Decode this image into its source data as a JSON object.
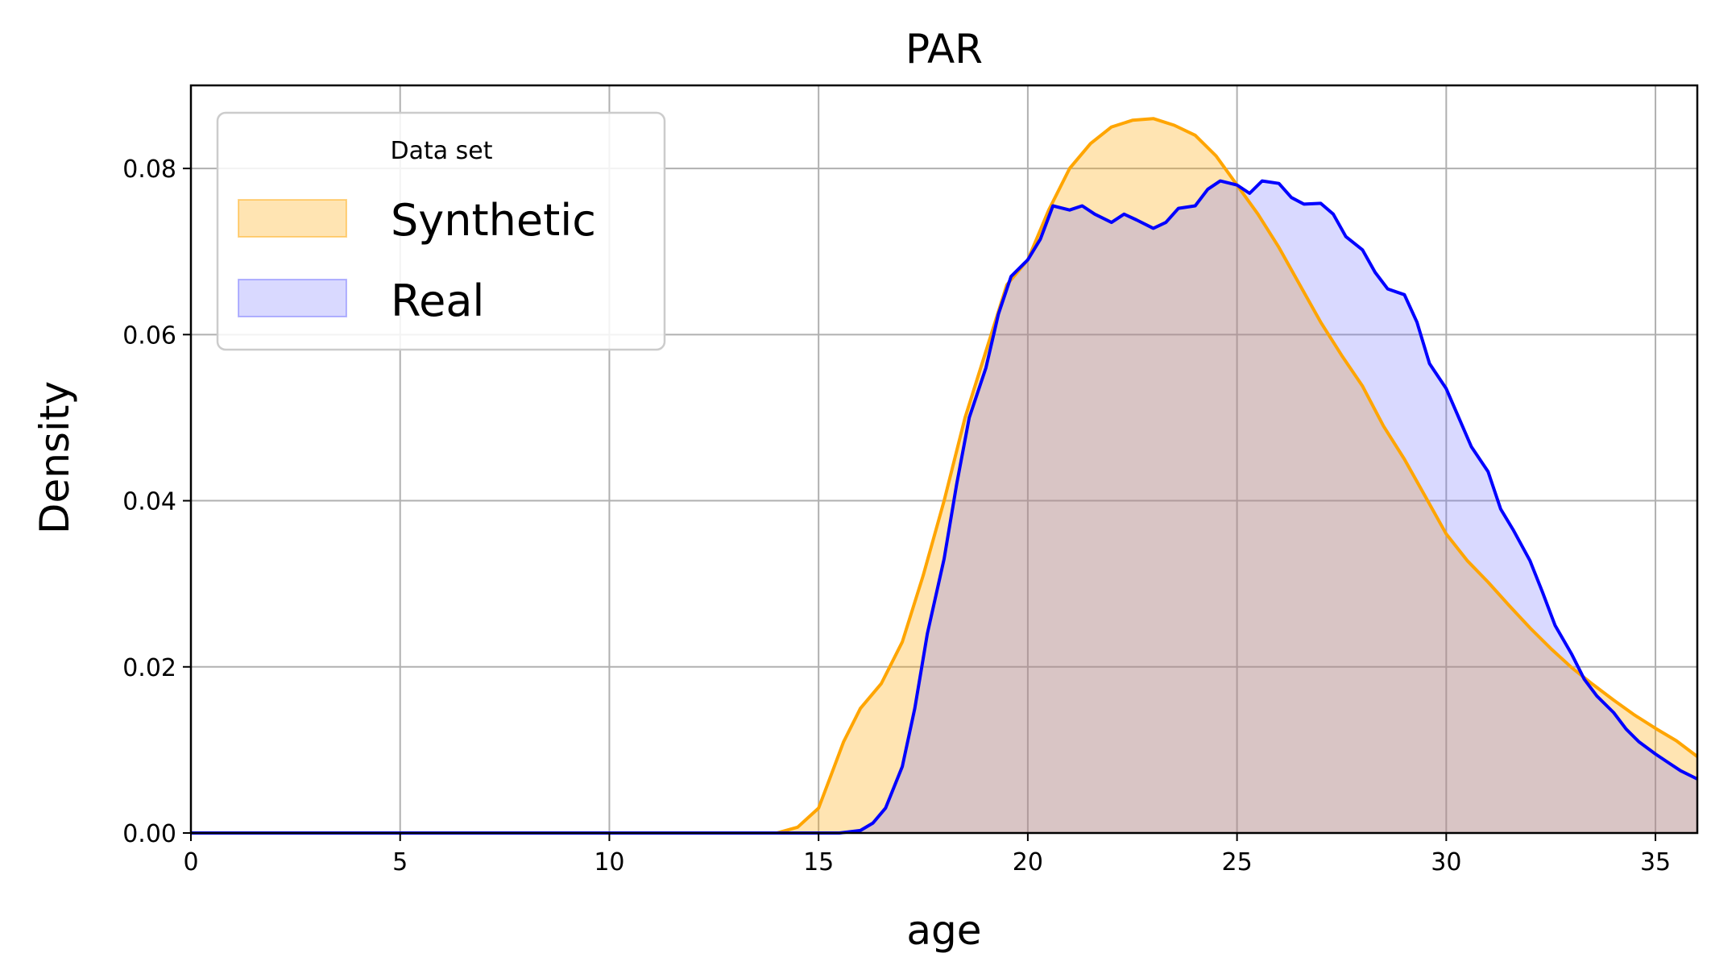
{
  "chart_data": {
    "type": "area",
    "title": "PAR",
    "xlabel": "age",
    "ylabel": "Density",
    "xlim": [
      0,
      36
    ],
    "ylim": [
      0,
      0.09
    ],
    "grid": true,
    "x_ticks": [
      "0",
      "5",
      "10",
      "15",
      "20",
      "25",
      "30",
      "35"
    ],
    "y_ticks": [
      "0.00",
      "0.02",
      "0.04",
      "0.06",
      "0.08"
    ],
    "legend": {
      "title": "Data set",
      "placement": "upper-left"
    },
    "series": [
      {
        "name": "Synthetic",
        "color": "#FFA500",
        "fill": "#FFA500",
        "x": [
          0,
          14,
          14.5,
          15,
          15.3,
          15.6,
          16,
          16.5,
          17,
          17.5,
          18,
          18.5,
          19,
          19.5,
          20,
          20.5,
          21,
          21.5,
          22,
          22.5,
          23,
          23.5,
          24,
          24.5,
          25,
          25.5,
          26,
          26.5,
          27,
          27.5,
          28,
          28.5,
          29,
          29.5,
          30,
          30.5,
          31,
          31.5,
          32,
          32.5,
          33,
          33.5,
          34,
          34.5,
          35,
          35.5,
          36
        ],
        "y": [
          0,
          0,
          0.0007,
          0.003,
          0.007,
          0.011,
          0.015,
          0.018,
          0.023,
          0.031,
          0.04,
          0.05,
          0.058,
          0.066,
          0.069,
          0.075,
          0.08,
          0.083,
          0.085,
          0.0858,
          0.086,
          0.0852,
          0.084,
          0.0815,
          0.078,
          0.0745,
          0.0705,
          0.066,
          0.0615,
          0.0575,
          0.0538,
          0.049,
          0.045,
          0.0405,
          0.036,
          0.0328,
          0.0302,
          0.0274,
          0.0247,
          0.0222,
          0.0199,
          0.0179,
          0.016,
          0.0142,
          0.0126,
          0.0111,
          0.0092
        ]
      },
      {
        "name": "Real",
        "color": "#0000FF",
        "fill": "#6666FF",
        "x": [
          0,
          15.5,
          16,
          16.3,
          16.6,
          17,
          17.3,
          17.6,
          18,
          18.3,
          18.6,
          19,
          19.3,
          19.6,
          20,
          20.3,
          20.6,
          21,
          21.3,
          21.6,
          22,
          22.3,
          22.6,
          23,
          23.3,
          23.6,
          24,
          24.3,
          24.6,
          25,
          25.3,
          25.6,
          26,
          26.3,
          26.6,
          27,
          27.3,
          27.6,
          28,
          28.3,
          28.6,
          29,
          29.3,
          29.6,
          30,
          30.3,
          30.6,
          31,
          31.3,
          31.6,
          32,
          32.3,
          32.6,
          33,
          33.3,
          33.6,
          34,
          34.3,
          34.6,
          35,
          35.3,
          35.6,
          36
        ],
        "y": [
          0,
          0,
          0.0003,
          0.0012,
          0.003,
          0.008,
          0.015,
          0.024,
          0.033,
          0.042,
          0.05,
          0.056,
          0.0625,
          0.067,
          0.069,
          0.0715,
          0.0755,
          0.075,
          0.0755,
          0.0745,
          0.0735,
          0.0745,
          0.0738,
          0.0728,
          0.0735,
          0.0752,
          0.0755,
          0.0775,
          0.0785,
          0.078,
          0.077,
          0.0785,
          0.0782,
          0.0765,
          0.0757,
          0.0758,
          0.0745,
          0.0718,
          0.0702,
          0.0675,
          0.0655,
          0.0648,
          0.0615,
          0.0565,
          0.0535,
          0.05,
          0.0465,
          0.0435,
          0.039,
          0.0365,
          0.0328,
          0.029,
          0.025,
          0.0215,
          0.0185,
          0.0165,
          0.0145,
          0.0125,
          0.011,
          0.0095,
          0.0085,
          0.0075,
          0.0065
        ]
      }
    ]
  }
}
